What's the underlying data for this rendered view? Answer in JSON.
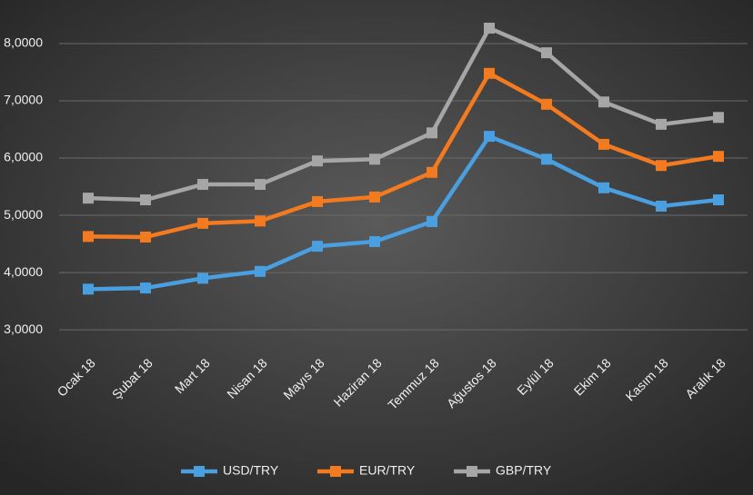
{
  "chart_data": {
    "type": "line",
    "categories": [
      "Ocak 18",
      "Şubat 18",
      "Mart 18",
      "Nisan 18",
      "Mayıs 18",
      "Haziran 18",
      "Temmuz 18",
      "Ağustos 18",
      "Eylül 18",
      "Ekim 18",
      "Kasım 18",
      "Aralık 18"
    ],
    "series": [
      {
        "name": "USD/TRY",
        "color": "#4a9fe0",
        "values": [
          3.71,
          3.73,
          3.9,
          4.02,
          4.46,
          4.54,
          4.89,
          6.38,
          5.98,
          5.48,
          5.16,
          5.27
        ]
      },
      {
        "name": "EUR/TRY",
        "color": "#f47a20",
        "values": [
          4.63,
          4.62,
          4.86,
          4.9,
          5.24,
          5.32,
          5.75,
          7.48,
          6.94,
          6.24,
          5.87,
          6.03
        ]
      },
      {
        "name": "GBP/TRY",
        "color": "#a6a6a6",
        "values": [
          5.3,
          5.27,
          5.54,
          5.54,
          5.95,
          5.98,
          6.44,
          8.27,
          7.84,
          6.98,
          6.59,
          6.71
        ]
      }
    ],
    "ylim": [
      2.7,
      8.5
    ],
    "yticks": [
      {
        "value": 3,
        "label": "3,0000"
      },
      {
        "value": 4,
        "label": "4,0000"
      },
      {
        "value": 5,
        "label": "5,0000"
      },
      {
        "value": 6,
        "label": "6,0000"
      },
      {
        "value": 7,
        "label": "7,0000"
      },
      {
        "value": 8,
        "label": "8,0000"
      }
    ],
    "grid": true,
    "legend": "bottom"
  }
}
